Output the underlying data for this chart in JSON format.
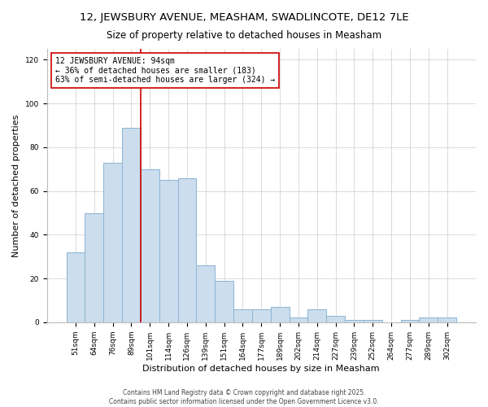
{
  "title": "12, JEWSBURY AVENUE, MEASHAM, SWADLINCOTE, DE12 7LE",
  "subtitle": "Size of property relative to detached houses in Measham",
  "xlabel": "Distribution of detached houses by size in Measham",
  "ylabel": "Number of detached properties",
  "bar_color": "#ccdded",
  "bar_edge_color": "#8ab4d4",
  "categories": [
    "51sqm",
    "64sqm",
    "76sqm",
    "89sqm",
    "101sqm",
    "114sqm",
    "126sqm",
    "139sqm",
    "151sqm",
    "164sqm",
    "177sqm",
    "189sqm",
    "202sqm",
    "214sqm",
    "227sqm",
    "239sqm",
    "252sqm",
    "264sqm",
    "277sqm",
    "289sqm",
    "302sqm"
  ],
  "values": [
    32,
    50,
    73,
    89,
    70,
    65,
    66,
    26,
    19,
    6,
    6,
    7,
    2,
    6,
    3,
    1,
    1,
    0,
    1,
    2,
    2
  ],
  "vline_color": "#cc0000",
  "vline_x_idx": 3.5,
  "annotation_text": "12 JEWSBURY AVENUE: 94sqm\n← 36% of detached houses are smaller (183)\n63% of semi-detached houses are larger (324) →",
  "ylim": [
    0,
    125
  ],
  "yticks": [
    0,
    20,
    40,
    60,
    80,
    100,
    120
  ],
  "footer1": "Contains HM Land Registry data © Crown copyright and database right 2025.",
  "footer2": "Contains public sector information licensed under the Open Government Licence v3.0.",
  "title_fontsize": 9.5,
  "subtitle_fontsize": 8.5,
  "axis_fontsize": 8,
  "tick_fontsize": 6.5,
  "annotation_fontsize": 7
}
